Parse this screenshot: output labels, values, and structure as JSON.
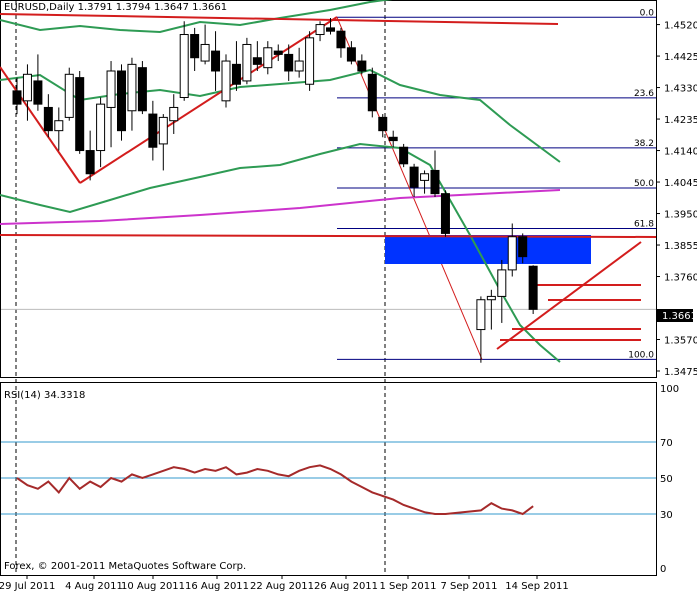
{
  "title": "EURUSD,Daily  1.3791 1.3794 1.3647 1.3661",
  "copyright": "Forex, © 2001-2011 MetaQuotes Software Corp.",
  "current_price_label": "1.3661",
  "price_axis": {
    "ticks": [
      "1.4520",
      "1.4425",
      "1.4330",
      "1.4235",
      "1.4140",
      "1.4045",
      "1.3950",
      "1.3855",
      "1.3760",
      "1.3570",
      "1.3475"
    ]
  },
  "date_axis": {
    "ticks": [
      "29 Jul 2011",
      "4 Aug 2011",
      "10 Aug 2011",
      "16 Aug 2011",
      "22 Aug 2011",
      "26 Aug 2011",
      "1 Sep 2011",
      "7 Sep 2011",
      "14 Sep 2011"
    ]
  },
  "fibonacci": {
    "levels": [
      {
        "label": "0.0",
        "price": 1.4542
      },
      {
        "label": "23.6",
        "price": 1.4299
      },
      {
        "label": "38.2",
        "price": 1.4148
      },
      {
        "label": "50.0",
        "price": 1.4027
      },
      {
        "label": "61.8",
        "price": 1.3905
      },
      {
        "label": "100.0",
        "price": 1.351
      }
    ]
  },
  "rsi": {
    "label": "RSI(14) 34.3318",
    "axis_ticks": [
      "100",
      "70",
      "50",
      "30",
      "0"
    ],
    "levels": [
      70,
      50,
      30
    ]
  },
  "colors": {
    "bull_body": "#ffffff",
    "bear_body": "#000000",
    "bollinger": "#2e9b54",
    "ma_magenta": "#cc33cc",
    "trend_red": "#d31d1d",
    "fib_blue": "#000080",
    "zone_blue": "#0033ff",
    "rsi_line": "#a52a2a",
    "rsi_level": "#3399cc"
  },
  "chart_data": {
    "type": "candlestick",
    "symbol": "EURUSD",
    "timeframe": "Daily",
    "ylim": [
      1.3475,
      1.457
    ],
    "candles": [
      {
        "o": 1.432,
        "h": 1.436,
        "l": 1.425,
        "c": 1.428
      },
      {
        "o": 1.429,
        "h": 1.44,
        "l": 1.423,
        "c": 1.437
      },
      {
        "o": 1.435,
        "h": 1.443,
        "l": 1.426,
        "c": 1.428
      },
      {
        "o": 1.427,
        "h": 1.431,
        "l": 1.418,
        "c": 1.42
      },
      {
        "o": 1.42,
        "h": 1.427,
        "l": 1.414,
        "c": 1.423
      },
      {
        "o": 1.424,
        "h": 1.439,
        "l": 1.423,
        "c": 1.437
      },
      {
        "o": 1.436,
        "h": 1.438,
        "l": 1.413,
        "c": 1.414
      },
      {
        "o": 1.414,
        "h": 1.42,
        "l": 1.405,
        "c": 1.407
      },
      {
        "o": 1.414,
        "h": 1.43,
        "l": 1.409,
        "c": 1.428
      },
      {
        "o": 1.427,
        "h": 1.441,
        "l": 1.415,
        "c": 1.438
      },
      {
        "o": 1.438,
        "h": 1.44,
        "l": 1.417,
        "c": 1.42
      },
      {
        "o": 1.426,
        "h": 1.442,
        "l": 1.42,
        "c": 1.44
      },
      {
        "o": 1.439,
        "h": 1.441,
        "l": 1.425,
        "c": 1.426
      },
      {
        "o": 1.425,
        "h": 1.429,
        "l": 1.411,
        "c": 1.415
      },
      {
        "o": 1.416,
        "h": 1.425,
        "l": 1.408,
        "c": 1.424
      },
      {
        "o": 1.423,
        "h": 1.431,
        "l": 1.419,
        "c": 1.427
      },
      {
        "o": 1.43,
        "h": 1.453,
        "l": 1.429,
        "c": 1.449
      },
      {
        "o": 1.449,
        "h": 1.451,
        "l": 1.438,
        "c": 1.442
      },
      {
        "o": 1.441,
        "h": 1.452,
        "l": 1.44,
        "c": 1.446
      },
      {
        "o": 1.444,
        "h": 1.45,
        "l": 1.432,
        "c": 1.438
      },
      {
        "o": 1.429,
        "h": 1.443,
        "l": 1.427,
        "c": 1.441
      },
      {
        "o": 1.44,
        "h": 1.447,
        "l": 1.432,
        "c": 1.434
      },
      {
        "o": 1.435,
        "h": 1.448,
        "l": 1.434,
        "c": 1.446
      },
      {
        "o": 1.442,
        "h": 1.447,
        "l": 1.438,
        "c": 1.44
      },
      {
        "o": 1.439,
        "h": 1.447,
        "l": 1.437,
        "c": 1.445
      },
      {
        "o": 1.444,
        "h": 1.446,
        "l": 1.441,
        "c": 1.443
      },
      {
        "o": 1.443,
        "h": 1.446,
        "l": 1.435,
        "c": 1.438
      },
      {
        "o": 1.438,
        "h": 1.445,
        "l": 1.436,
        "c": 1.441
      },
      {
        "o": 1.434,
        "h": 1.45,
        "l": 1.432,
        "c": 1.448
      },
      {
        "o": 1.449,
        "h": 1.453,
        "l": 1.447,
        "c": 1.452
      },
      {
        "o": 1.451,
        "h": 1.454,
        "l": 1.449,
        "c": 1.45
      },
      {
        "o": 1.45,
        "h": 1.451,
        "l": 1.442,
        "c": 1.445
      },
      {
        "o": 1.445,
        "h": 1.447,
        "l": 1.44,
        "c": 1.441
      },
      {
        "o": 1.441,
        "h": 1.443,
        "l": 1.437,
        "c": 1.438
      },
      {
        "o": 1.437,
        "h": 1.439,
        "l": 1.424,
        "c": 1.426
      },
      {
        "o": 1.424,
        "h": 1.425,
        "l": 1.418,
        "c": 1.42
      },
      {
        "o": 1.418,
        "h": 1.42,
        "l": 1.415,
        "c": 1.417
      },
      {
        "o": 1.415,
        "h": 1.416,
        "l": 1.409,
        "c": 1.41
      },
      {
        "o": 1.409,
        "h": 1.41,
        "l": 1.4,
        "c": 1.403
      },
      {
        "o": 1.405,
        "h": 1.408,
        "l": 1.401,
        "c": 1.407
      },
      {
        "o": 1.408,
        "h": 1.414,
        "l": 1.4,
        "c": 1.401
      },
      {
        "o": 1.401,
        "h": 1.402,
        "l": 1.388,
        "c": 1.389
      },
      {
        "o": 1.36,
        "h": 1.37,
        "l": 1.35,
        "c": 1.369
      },
      {
        "o": 1.369,
        "h": 1.372,
        "l": 1.36,
        "c": 1.37
      },
      {
        "o": 1.37,
        "h": 1.381,
        "l": 1.362,
        "c": 1.378
      },
      {
        "o": 1.378,
        "h": 1.392,
        "l": 1.376,
        "c": 1.388
      },
      {
        "o": 1.388,
        "h": 1.389,
        "l": 1.38,
        "c": 1.382
      },
      {
        "o": 1.3791,
        "h": 1.3794,
        "l": 1.3647,
        "c": 1.3661
      }
    ],
    "rsi_values": [
      50,
      46,
      44,
      48,
      42,
      50,
      44,
      48,
      45,
      50,
      48,
      52,
      50,
      52,
      54,
      56,
      55,
      53,
      55,
      54,
      56,
      52,
      53,
      55,
      54,
      52,
      51,
      54,
      56,
      57,
      55,
      52,
      48,
      45,
      42,
      40,
      38,
      35,
      33,
      31,
      30,
      30,
      32,
      36,
      33,
      32,
      30,
      34.3318
    ]
  }
}
